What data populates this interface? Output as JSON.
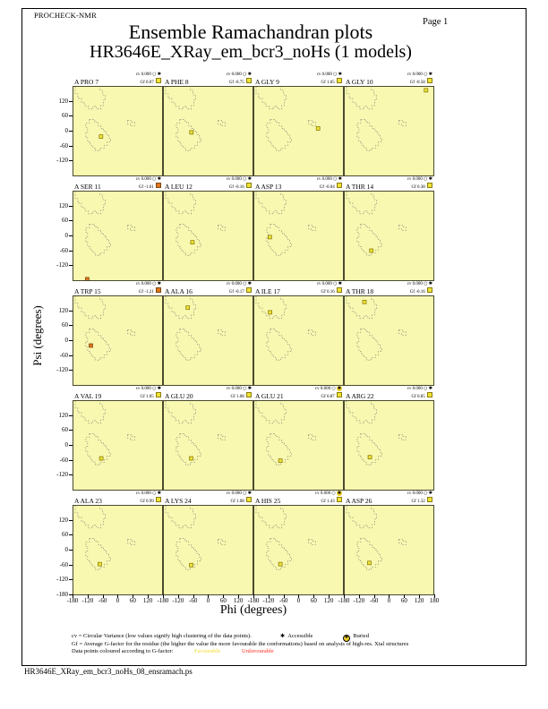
{
  "page": {
    "app_label": "PROCHECK-NMR",
    "title": "Ensemble Ramachandran plots",
    "subtitle": "HR3646E_XRay_em_bcr3_noHs (1 models)",
    "page_label": "Page  1",
    "footer_filename": "HR3646E_XRay_em_bcr3_noHs_08_ensramach.ps"
  },
  "axes": {
    "x_label": "Phi (degrees)",
    "y_label": "Psi (degrees)",
    "y_tick_values": [
      120,
      60,
      0,
      -60,
      -120
    ],
    "y_bottom_tick": -180,
    "x_tick_values": [
      -180,
      -120,
      -60,
      0,
      60,
      120
    ],
    "x_last_tick": 180
  },
  "legend": {
    "line1": "cv = Circular Variance (low values signify high clustering of the data points).",
    "accessible_label": "Accessible",
    "buried_label": "Buried",
    "line2": "Gf = Average G-factor for the residue (the higher the value the more favourable the conformations) based on analysis of high-res. Xtal structures",
    "line3_prefix": "Data points coloured according to G-factor:",
    "favourable_label": "Favourable",
    "unfavourable_label": "Unfavourable",
    "cv_prefix": "cv",
    "gf_prefix": "Gf"
  },
  "colors": {
    "plot_background": "#f8f8b0",
    "favourable_point": "#f0e334",
    "favourable_border": "#8a7d10",
    "unfavourable_point": "#e2751d",
    "unfavourable_border": "#7a4a10",
    "unfavourable_text": "#ff2a18",
    "favourable_text": "#f0dc30",
    "region_outline": "#8a8a78",
    "buried_circle": "#f0cf2a"
  },
  "chart_data": {
    "type": "scatter",
    "title": "Ensemble Ramachandran plots",
    "subtitle": "HR3646E_XRay_em_bcr3_noHs (1 models)",
    "xlabel": "Phi (degrees)",
    "ylabel": "Psi (degrees)",
    "xlim": [
      -180,
      180
    ],
    "ylim": [
      -180,
      180
    ],
    "grid": false,
    "layout": "5 rows x 4 columns of per-residue Ramachandran subplots",
    "regions": [
      "beta-sheet-contour",
      "alpha-helix-contour",
      "left-handed-alpha-contour"
    ],
    "subplots": [
      {
        "residue": "A PRO 7",
        "cv": "0.000",
        "gf": "0.07",
        "favourable": true,
        "buried": false,
        "phi": -68,
        "psi": -22
      },
      {
        "residue": "A PHE 8",
        "cv": "0.000",
        "gf": "-0.75",
        "favourable": true,
        "buried": false,
        "phi": -68,
        "psi": -5
      },
      {
        "residue": "A GLY 9",
        "cv": "0.000",
        "gf": "1.05",
        "favourable": true,
        "buried": false,
        "phi": 79,
        "psi": 11
      },
      {
        "residue": "A GLY 10",
        "cv": "0.000",
        "gf": "-0.58",
        "favourable": true,
        "buried": false,
        "phi": 150,
        "psi": 166
      },
      {
        "residue": "A SER 11",
        "cv": "0.000",
        "gf": "-1.61",
        "favourable": false,
        "buried": false,
        "phi": -124,
        "psi": -176
      },
      {
        "residue": "A LEU 12",
        "cv": "0.000",
        "gf": "-0.16",
        "favourable": true,
        "buried": false,
        "phi": -64,
        "psi": -26
      },
      {
        "residue": "A ASP 13",
        "cv": "0.000",
        "gf": "-0.04",
        "favourable": true,
        "buried": false,
        "phi": -117,
        "psi": -5
      },
      {
        "residue": "A THR 14",
        "cv": "0.000",
        "gf": "0.38",
        "favourable": true,
        "buried": false,
        "phi": -72,
        "psi": -60
      },
      {
        "residue": "A TRP 15",
        "cv": "0.000",
        "gf": "-1.21",
        "favourable": false,
        "buried": false,
        "phi": -109,
        "psi": -20
      },
      {
        "residue": "A ALA 16",
        "cv": "0.000",
        "gf": "-0.17",
        "favourable": true,
        "buried": false,
        "phi": -83,
        "psi": 134
      },
      {
        "residue": "A ILE 17",
        "cv": "0.000",
        "gf": "0.16",
        "favourable": true,
        "buried": false,
        "phi": -116,
        "psi": 115
      },
      {
        "residue": "A THR 18",
        "cv": "0.000",
        "gf": "-0.16",
        "favourable": true,
        "buried": false,
        "phi": -100,
        "psi": 157
      },
      {
        "residue": "A VAL 19",
        "cv": "0.000",
        "gf": "1.05",
        "favourable": true,
        "buried": false,
        "phi": -67,
        "psi": -53
      },
      {
        "residue": "A GLU 20",
        "cv": "0.000",
        "gf": "1.08",
        "favourable": true,
        "buried": false,
        "phi": -69,
        "psi": -53
      },
      {
        "residue": "A GLU 21",
        "cv": "0.000",
        "gf": "0.87",
        "favourable": true,
        "buried": true,
        "phi": -74,
        "psi": -62
      },
      {
        "residue": "A ARG 22",
        "cv": "0.000",
        "gf": "0.85",
        "favourable": true,
        "buried": false,
        "phi": -78,
        "psi": -48
      },
      {
        "residue": "A ALA 23",
        "cv": "0.000",
        "gf": "0.99",
        "favourable": true,
        "buried": false,
        "phi": -73,
        "psi": -57
      },
      {
        "residue": "A LYS 24",
        "cv": "0.000",
        "gf": "1.08",
        "favourable": true,
        "buried": false,
        "phi": -69,
        "psi": -61
      },
      {
        "residue": "A HIS 25",
        "cv": "0.000",
        "gf": "1.43",
        "favourable": true,
        "buried": true,
        "phi": -74,
        "psi": -57
      },
      {
        "residue": "A ASP 26",
        "cv": "0.000",
        "gf": "1.32",
        "favourable": true,
        "buried": false,
        "phi": -80,
        "psi": -52
      }
    ]
  }
}
